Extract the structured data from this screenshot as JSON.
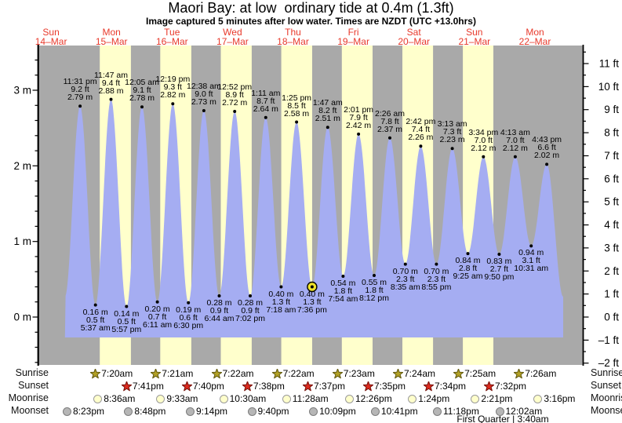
{
  "title": "Maori Bay: at low  ordinary tide at 0.4m (1.3ft)",
  "subtitle": "Image captured 5 minutes after low water. Times are NZDT (UTC +13.0hrs)",
  "rows": {
    "sunrise": "Sunrise",
    "sunset": "Sunset",
    "moonrise": "Moonrise",
    "moonset": "Moonset"
  },
  "colors": {
    "night_band": "#a9a9a9",
    "day_band": "#ffffcc",
    "tide_fill": "#a5adf2",
    "day_label_red": "#e8392b",
    "sunrise_star_fill": "#b3a125",
    "sunrise_star_stroke": "#655d12",
    "sunset_star_fill": "#dd2a1e",
    "sunset_star_stroke": "#7a150e",
    "moonrise_circle_fill": "#ffffcc",
    "moonrise_circle_stroke": "#9a9a9a",
    "moonset_circle_fill": "#b6b6b6",
    "moonset_circle_stroke": "#7d7d7d",
    "highlight_marker_fill": "#f0e32a",
    "axis_black": "#000000"
  },
  "chart_data": {
    "type": "area",
    "title": "Maori Bay tide heights",
    "x_domain": {
      "start": "Sun 14-Mar 07:00",
      "end": "Tue 23-Mar 07:00",
      "hours": 216
    },
    "left_axis": {
      "unit": "m",
      "min": -0.62,
      "max": 3.57,
      "minor_step": 0.2,
      "ticks": [
        {
          "v": 3,
          "label": "3 m"
        },
        {
          "v": 2,
          "label": "2 m"
        },
        {
          "v": 1,
          "label": "1 m"
        },
        {
          "v": 0,
          "label": "0 m"
        }
      ]
    },
    "right_axis": {
      "unit": "ft",
      "min": -2,
      "max": 11.5,
      "minor_step": 0.5,
      "ticks": [
        {
          "v": 11,
          "label": "11 ft"
        },
        {
          "v": 10,
          "label": "10 ft"
        },
        {
          "v": 9,
          "label": "9 ft"
        },
        {
          "v": 8,
          "label": "8 ft"
        },
        {
          "v": 7,
          "label": "7 ft"
        },
        {
          "v": 6,
          "label": "6 ft"
        },
        {
          "v": 5,
          "label": "5 ft"
        },
        {
          "v": 4,
          "label": "4 ft"
        },
        {
          "v": 3,
          "label": "3 ft"
        },
        {
          "v": 2,
          "label": "2 ft"
        },
        {
          "v": 1,
          "label": "1 ft"
        },
        {
          "v": 0,
          "label": "0 ft"
        },
        {
          "v": -1,
          "label": "–1 ft"
        },
        {
          "v": -2,
          "label": "–2 ft"
        }
      ]
    },
    "days": [
      {
        "name": "Sun",
        "date": "14–Mar"
      },
      {
        "name": "Mon",
        "date": "15–Mar"
      },
      {
        "name": "Tue",
        "date": "16–Mar"
      },
      {
        "name": "Wed",
        "date": "17–Mar"
      },
      {
        "name": "Thu",
        "date": "18–Mar"
      },
      {
        "name": "Fri",
        "date": "19–Mar"
      },
      {
        "name": "Sat",
        "date": "20–Mar"
      },
      {
        "name": "Sun",
        "date": "21–Mar"
      },
      {
        "name": "Mon",
        "date": "22–Mar"
      }
    ],
    "tide_events": [
      {
        "kind": "high",
        "day": 0,
        "time24": "23:31",
        "time": "11:31 pm",
        "ft": "9.2 ft",
        "m": "2.79 m",
        "meters": 2.79
      },
      {
        "kind": "low",
        "day": 1,
        "time24": "05:37",
        "time": "5:37 am",
        "ft": "0.5 ft",
        "m": "0.16 m",
        "meters": 0.16
      },
      {
        "kind": "high",
        "day": 1,
        "time24": "11:47",
        "time": "11:47 am",
        "ft": "9.4 ft",
        "m": "2.88 m",
        "meters": 2.88
      },
      {
        "kind": "low",
        "day": 1,
        "time24": "17:57",
        "time": "5:57 pm",
        "ft": "0.5 ft",
        "m": "0.14 m",
        "meters": 0.14
      },
      {
        "kind": "high",
        "day": 2,
        "time24": "00:05",
        "time": "12:05 am",
        "ft": "9.1 ft",
        "m": "2.78 m",
        "meters": 2.78
      },
      {
        "kind": "low",
        "day": 2,
        "time24": "06:11",
        "time": "6:11 am",
        "ft": "0.7 ft",
        "m": "0.20 m",
        "meters": 0.2
      },
      {
        "kind": "high",
        "day": 2,
        "time24": "12:19",
        "time": "12:19 pm",
        "ft": "9.3 ft",
        "m": "2.82 m",
        "meters": 2.82
      },
      {
        "kind": "low",
        "day": 2,
        "time24": "18:30",
        "time": "6:30 pm",
        "ft": "0.6 ft",
        "m": "0.19 m",
        "meters": 0.19
      },
      {
        "kind": "high",
        "day": 3,
        "time24": "00:38",
        "time": "12:38 am",
        "ft": "9.0 ft",
        "m": "2.73 m",
        "meters": 2.73
      },
      {
        "kind": "low",
        "day": 3,
        "time24": "06:44",
        "time": "6:44 am",
        "ft": "0.9 ft",
        "m": "0.28 m",
        "meters": 0.28
      },
      {
        "kind": "high",
        "day": 3,
        "time24": "12:52",
        "time": "12:52 pm",
        "ft": "8.9 ft",
        "m": "2.72 m",
        "meters": 2.72
      },
      {
        "kind": "low",
        "day": 3,
        "time24": "19:02",
        "time": "7:02 pm",
        "ft": "0.9 ft",
        "m": "0.28 m",
        "meters": 0.28
      },
      {
        "kind": "high",
        "day": 4,
        "time24": "01:11",
        "time": "1:11 am",
        "ft": "8.7 ft",
        "m": "2.64 m",
        "meters": 2.64
      },
      {
        "kind": "low",
        "day": 4,
        "time24": "07:18",
        "time": "7:18 am",
        "ft": "1.3 ft",
        "m": "0.40 m",
        "meters": 0.4
      },
      {
        "kind": "high",
        "day": 4,
        "time24": "13:25",
        "time": "1:25 pm",
        "ft": "8.5 ft",
        "m": "2.58 m",
        "meters": 2.58
      },
      {
        "kind": "low",
        "day": 4,
        "time24": "19:36",
        "time": "7:36 pm",
        "ft": "1.3 ft",
        "m": "0.40 m",
        "meters": 0.4,
        "highlight": true
      },
      {
        "kind": "high",
        "day": 5,
        "time24": "01:47",
        "time": "1:47 am",
        "ft": "8.2 ft",
        "m": "2.51 m",
        "meters": 2.51
      },
      {
        "kind": "low",
        "day": 5,
        "time24": "07:54",
        "time": "7:54 am",
        "ft": "1.8 ft",
        "m": "0.54 m",
        "meters": 0.54
      },
      {
        "kind": "high",
        "day": 5,
        "time24": "14:01",
        "time": "2:01 pm",
        "ft": "7.9 ft",
        "m": "2.42 m",
        "meters": 2.42
      },
      {
        "kind": "low",
        "day": 5,
        "time24": "20:12",
        "time": "8:12 pm",
        "ft": "1.8 ft",
        "m": "0.55 m",
        "meters": 0.55
      },
      {
        "kind": "high",
        "day": 6,
        "time24": "02:26",
        "time": "2:26 am",
        "ft": "7.8 ft",
        "m": "2.37 m",
        "meters": 2.37
      },
      {
        "kind": "low",
        "day": 6,
        "time24": "08:35",
        "time": "8:35 am",
        "ft": "2.3 ft",
        "m": "0.70 m",
        "meters": 0.7
      },
      {
        "kind": "high",
        "day": 6,
        "time24": "14:42",
        "time": "2:42 pm",
        "ft": "7.4 ft",
        "m": "2.26 m",
        "meters": 2.26
      },
      {
        "kind": "low",
        "day": 6,
        "time24": "20:55",
        "time": "8:55 pm",
        "ft": "2.3 ft",
        "m": "0.70 m",
        "meters": 0.7
      },
      {
        "kind": "high",
        "day": 7,
        "time24": "03:13",
        "time": "3:13 am",
        "ft": "7.3 ft",
        "m": "2.23 m",
        "meters": 2.23
      },
      {
        "kind": "low",
        "day": 7,
        "time24": "09:25",
        "time": "9:25 am",
        "ft": "2.8 ft",
        "m": "0.84 m",
        "meters": 0.84
      },
      {
        "kind": "high",
        "day": 7,
        "time24": "15:34",
        "time": "3:34 pm",
        "ft": "7.0 ft",
        "m": "2.12 m",
        "meters": 2.12
      },
      {
        "kind": "low",
        "day": 7,
        "time24": "21:50",
        "time": "9:50 pm",
        "ft": "2.7 ft",
        "m": "0.83 m",
        "meters": 0.83
      },
      {
        "kind": "high",
        "day": 8,
        "time24": "04:13",
        "time": "4:13 am",
        "ft": "7.0 ft",
        "m": "2.12 m",
        "meters": 2.12
      },
      {
        "kind": "low",
        "day": 8,
        "time24": "10:31",
        "time": "10:31 am",
        "ft": "3.1 ft",
        "m": "0.94 m",
        "meters": 0.94
      },
      {
        "kind": "high",
        "day": 8,
        "time24": "16:43",
        "time": "4:43 pm",
        "ft": "6.6 ft",
        "m": "2.02 m",
        "meters": 2.02
      }
    ],
    "sunrise": [
      {
        "day": 1,
        "time24": "07:20",
        "label": "7:20am"
      },
      {
        "day": 2,
        "time24": "07:21",
        "label": "7:21am"
      },
      {
        "day": 3,
        "time24": "07:22",
        "label": "7:22am"
      },
      {
        "day": 4,
        "time24": "07:22",
        "label": "7:22am"
      },
      {
        "day": 5,
        "time24": "07:23",
        "label": "7:23am"
      },
      {
        "day": 6,
        "time24": "07:24",
        "label": "7:24am"
      },
      {
        "day": 7,
        "time24": "07:25",
        "label": "7:25am"
      },
      {
        "day": 8,
        "time24": "07:26",
        "label": "7:26am"
      }
    ],
    "sunset": [
      {
        "day": 1,
        "time24": "19:41",
        "label": "7:41pm"
      },
      {
        "day": 2,
        "time24": "19:40",
        "label": "7:40pm"
      },
      {
        "day": 3,
        "time24": "19:38",
        "label": "7:38pm"
      },
      {
        "day": 4,
        "time24": "19:37",
        "label": "7:37pm"
      },
      {
        "day": 5,
        "time24": "19:35",
        "label": "7:35pm"
      },
      {
        "day": 6,
        "time24": "19:34",
        "label": "7:34pm"
      },
      {
        "day": 7,
        "time24": "19:32",
        "label": "7:32pm"
      }
    ],
    "moonrise": [
      {
        "day": 1,
        "time24": "08:36",
        "label": "8:36am"
      },
      {
        "day": 2,
        "time24": "09:33",
        "label": "9:33am"
      },
      {
        "day": 3,
        "time24": "10:30",
        "label": "10:30am"
      },
      {
        "day": 4,
        "time24": "11:28",
        "label": "11:28am"
      },
      {
        "day": 5,
        "time24": "12:26",
        "label": "12:26pm"
      },
      {
        "day": 6,
        "time24": "13:24",
        "label": "1:24pm"
      },
      {
        "day": 7,
        "time24": "14:21",
        "label": "2:21pm"
      },
      {
        "day": 8,
        "time24": "15:16",
        "label": "3:16pm"
      }
    ],
    "moonset": [
      {
        "day": 0,
        "time24": "20:23",
        "label": "8:23pm"
      },
      {
        "day": 1,
        "time24": "20:48",
        "label": "8:48pm"
      },
      {
        "day": 2,
        "time24": "21:14",
        "label": "9:14pm"
      },
      {
        "day": 3,
        "time24": "21:40",
        "label": "9:40pm"
      },
      {
        "day": 4,
        "time24": "22:09",
        "label": "10:09pm"
      },
      {
        "day": 5,
        "time24": "22:41",
        "label": "10:41pm"
      },
      {
        "day": 6,
        "time24": "23:18",
        "label": "11:18pm"
      },
      {
        "day": 8,
        "time24": "00:02",
        "label": "12:02am"
      }
    ],
    "moon_phase": "First Quarter | 3:40am",
    "legend_position": "none",
    "grid": false
  }
}
